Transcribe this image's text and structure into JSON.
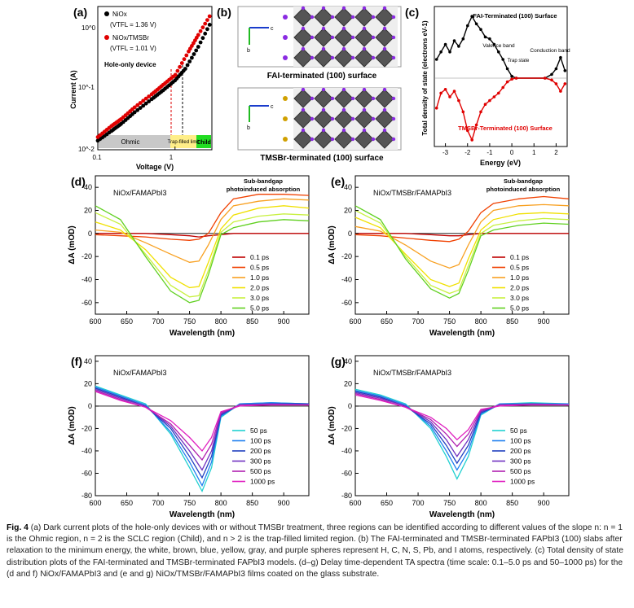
{
  "colors": {
    "ps": [
      "#c00000",
      "#f04000",
      "#f8a020",
      "#f0e000",
      "#c8f040",
      "#60d020"
    ],
    "long": [
      "#20d0d0",
      "#2080f0",
      "#2040c0",
      "#7030c0",
      "#b020b0",
      "#e020c0"
    ],
    "black": "#000000",
    "red": "#e00000",
    "slab_bg": "#eeeeee"
  },
  "panel_a": {
    "letter": "(a)",
    "legend": [
      "NiOx",
      "(VTFL = 1.36 V)",
      "NiOx/TMSBr",
      "(VTFL = 1.01 V)"
    ],
    "note": "Hole-only device",
    "region_labels": [
      "Ohmic",
      "Trap-filled limit",
      "Child"
    ],
    "xlabel": "Voltage (V)",
    "ylabel": "Current (A)",
    "xticks": [
      "0.1",
      "1"
    ],
    "yticks": [
      "10^0",
      "10^-1",
      "10^-2"
    ]
  },
  "panel_b": {
    "letter": "(b)",
    "top_label": "FAI-terminated (100) surface",
    "bottom_label": "TMSBr-terminated (100) surface",
    "axis_c": "c",
    "axis_b": "b"
  },
  "panel_c": {
    "letter": "(c)",
    "fai_title": "FAI-Terminated (100) Surface",
    "tmsbr_title": "TMSBr-Terminated (100) Surface",
    "valence": "Valence band",
    "trap": "Trap state",
    "conduction": "Conduction band",
    "xlabel": "Energy (eV)",
    "ylabel": "Total density of state (electrons eV-1)",
    "xticks": [
      "-3",
      "-2",
      "-1",
      "0",
      "1",
      "2"
    ]
  },
  "panels_ta": [
    {
      "letter": "(d)",
      "sample": "NiOx/FAMAPbI3",
      "annotation": "Sub-bandgap photoinduced absorption",
      "legend": [
        "0.1 ps",
        "0.5 ps",
        "1.0 ps",
        "2.0 ps",
        "3.0 ps",
        "5.0 ps"
      ]
    },
    {
      "letter": "(e)",
      "sample": "NiOx/TMSBr/FAMAPbI3",
      "annotation": "Sub-bandgap photoinduced absorption",
      "legend": [
        "0.1 ps",
        "0.5 ps",
        "1.0 ps",
        "2.0 ps",
        "3.0 ps",
        "5.0 ps"
      ]
    },
    {
      "letter": "(f)",
      "sample": "NiOx/FAMAPbI3",
      "annotation": "",
      "legend": [
        "50 ps",
        "100 ps",
        "200 ps",
        "300 ps",
        "500 ps",
        "1000 ps"
      ]
    },
    {
      "letter": "(g)",
      "sample": "NiOx/TMSBr/FAMAPbI3",
      "annotation": "",
      "legend": [
        "50 ps",
        "100 ps",
        "200 ps",
        "300 ps",
        "500 ps",
        "1000 ps"
      ]
    }
  ],
  "ta_axes": {
    "xlabel": "Wavelength (nm)",
    "ylabel": "ΔA (mOD)",
    "xticks": [
      "600",
      "650",
      "700",
      "750",
      "800",
      "850",
      "900"
    ],
    "yticks_de": [
      "40",
      "20",
      "0",
      "-20",
      "-40",
      "-60"
    ],
    "yticks_fg": [
      "40",
      "20",
      "0",
      "-20",
      "-40",
      "-60",
      "-80"
    ]
  },
  "chart_data": [
    {
      "type": "scatter",
      "panel": "a",
      "xlabel": "Voltage (V)",
      "ylabel": "Current (A)",
      "scale": "log-log",
      "xlim": [
        0.1,
        3
      ],
      "ylim": [
        0.01,
        2
      ],
      "series": [
        {
          "name": "NiOx (VTFL = 1.36 V)",
          "x": [
            0.1,
            0.15,
            0.2,
            0.3,
            0.5,
            0.7,
            1.0,
            1.36,
            2.0,
            3.0
          ],
          "y": [
            0.014,
            0.02,
            0.026,
            0.04,
            0.065,
            0.09,
            0.13,
            0.2,
            0.45,
            1.2
          ]
        },
        {
          "name": "NiOx/TMSBr (VTFL = 1.01 V)",
          "x": [
            0.1,
            0.15,
            0.2,
            0.3,
            0.5,
            0.7,
            1.01,
            1.5,
            2.0,
            3.0
          ],
          "y": [
            0.016,
            0.024,
            0.031,
            0.048,
            0.078,
            0.11,
            0.16,
            0.38,
            0.7,
            1.6
          ]
        }
      ]
    },
    {
      "type": "line",
      "panel": "c",
      "xlabel": "Energy (eV)",
      "xlim": [
        -3.5,
        2.5
      ],
      "series": [
        {
          "name": "FAI-Terminated (100) Surface",
          "x": [
            -3.4,
            -3.2,
            -3.0,
            -2.8,
            -2.6,
            -2.4,
            -2.2,
            -2.0,
            -1.8,
            -1.6,
            -1.4,
            -1.2,
            -1.0,
            -0.8,
            -0.6,
            -0.4,
            -0.2,
            0.0,
            0.2,
            1.5,
            1.8,
            2.0,
            2.2,
            2.4
          ],
          "y": [
            10,
            14,
            18,
            14,
            20,
            17,
            21,
            28,
            33,
            29,
            26,
            22,
            21,
            18,
            14,
            10,
            5,
            1,
            0,
            0,
            2,
            5,
            11,
            4
          ]
        },
        {
          "name": "TMSBr-Terminated (100) Surface",
          "x": [
            -3.4,
            -3.2,
            -3.0,
            -2.8,
            -2.6,
            -2.4,
            -2.2,
            -2.0,
            -1.8,
            -1.6,
            -1.4,
            -1.2,
            -1.0,
            -0.8,
            -0.6,
            -0.4,
            -0.2,
            0.0,
            0.2,
            1.5,
            1.8,
            2.0,
            2.2,
            2.4
          ],
          "y": [
            -16,
            -8,
            -6,
            -10,
            -7,
            -12,
            -18,
            -28,
            -33,
            -25,
            -18,
            -14,
            -12,
            -10,
            -8,
            -5,
            -2,
            -0.5,
            0,
            0,
            -1,
            -3,
            -7,
            -3
          ]
        }
      ]
    },
    {
      "type": "line",
      "panel": "d",
      "title": "NiOx/FAMAPbI3",
      "xlabel": "Wavelength (nm)",
      "ylabel": "ΔA (mOD)",
      "xlim": [
        600,
        940
      ],
      "ylim": [
        -70,
        50
      ],
      "x": [
        600,
        640,
        680,
        720,
        750,
        765,
        780,
        800,
        820,
        860,
        900,
        940
      ],
      "series": [
        {
          "name": "0.1 ps",
          "values": [
            0,
            0,
            0,
            -1,
            -2,
            -3,
            -2,
            -1,
            0,
            0,
            0,
            0
          ]
        },
        {
          "name": "0.5 ps",
          "values": [
            -1,
            -2,
            -3,
            -5,
            -6,
            -5,
            0,
            18,
            30,
            34,
            34,
            33
          ]
        },
        {
          "name": "1.0 ps",
          "values": [
            3,
            1,
            -8,
            -18,
            -25,
            -24,
            -10,
            12,
            24,
            28,
            30,
            29
          ]
        },
        {
          "name": "2.0 ps",
          "values": [
            10,
            3,
            -14,
            -38,
            -47,
            -46,
            -25,
            4,
            16,
            22,
            24,
            22
          ]
        },
        {
          "name": "3.0 ps",
          "values": [
            18,
            8,
            -18,
            -45,
            -55,
            -54,
            -32,
            1,
            10,
            15,
            17,
            16
          ]
        },
        {
          "name": "5.0 ps",
          "values": [
            24,
            12,
            -20,
            -50,
            -60,
            -58,
            -36,
            -1,
            5,
            10,
            12,
            11
          ]
        }
      ]
    },
    {
      "type": "line",
      "panel": "e",
      "title": "NiOx/TMSBr/FAMAPbI3",
      "xlabel": "Wavelength (nm)",
      "ylabel": "ΔA (mOD)",
      "xlim": [
        600,
        940
      ],
      "ylim": [
        -70,
        50
      ],
      "x": [
        600,
        640,
        680,
        720,
        750,
        765,
        780,
        800,
        820,
        860,
        900,
        940
      ],
      "series": [
        {
          "name": "0.1 ps",
          "values": [
            0,
            0,
            0,
            -1,
            -2,
            -2,
            -1,
            0,
            0,
            0,
            0,
            0
          ]
        },
        {
          "name": "0.5 ps",
          "values": [
            -1,
            -2,
            -4,
            -6,
            -7,
            -5,
            2,
            18,
            26,
            30,
            32,
            30
          ]
        },
        {
          "name": "1.0 ps",
          "values": [
            6,
            2,
            -10,
            -24,
            -30,
            -27,
            -10,
            10,
            20,
            24,
            25,
            24
          ]
        },
        {
          "name": "2.0 ps",
          "values": [
            14,
            5,
            -18,
            -40,
            -46,
            -43,
            -22,
            3,
            12,
            17,
            18,
            17
          ]
        },
        {
          "name": "3.0 ps",
          "values": [
            20,
            9,
            -20,
            -45,
            -52,
            -49,
            -28,
            0,
            7,
            11,
            13,
            12
          ]
        },
        {
          "name": "5.0 ps",
          "values": [
            24,
            12,
            -22,
            -48,
            -56,
            -52,
            -32,
            -2,
            3,
            7,
            9,
            8
          ]
        }
      ]
    },
    {
      "type": "line",
      "panel": "f",
      "title": "NiOx/FAMAPbI3",
      "xlabel": "Wavelength (nm)",
      "ylabel": "ΔA (mOD)",
      "xlim": [
        600,
        940
      ],
      "ylim": [
        -80,
        45
      ],
      "x": [
        600,
        640,
        680,
        720,
        750,
        770,
        785,
        800,
        830,
        880,
        940
      ],
      "series": [
        {
          "name": "50 ps",
          "values": [
            18,
            10,
            2,
            -25,
            -55,
            -76,
            -55,
            -10,
            2,
            3,
            2
          ]
        },
        {
          "name": "100 ps",
          "values": [
            17,
            9,
            1,
            -23,
            -50,
            -71,
            -50,
            -9,
            2,
            3,
            2
          ]
        },
        {
          "name": "200 ps",
          "values": [
            16,
            8,
            0,
            -20,
            -45,
            -64,
            -45,
            -8,
            1,
            2,
            2
          ]
        },
        {
          "name": "300 ps",
          "values": [
            15,
            7,
            0,
            -18,
            -40,
            -57,
            -40,
            -7,
            1,
            2,
            1
          ]
        },
        {
          "name": "500 ps",
          "values": [
            14,
            6,
            -1,
            -16,
            -35,
            -48,
            -34,
            -6,
            1,
            1,
            1
          ]
        },
        {
          "name": "1000 ps",
          "values": [
            13,
            5,
            -1,
            -13,
            -28,
            -40,
            -28,
            -5,
            0,
            1,
            1
          ]
        }
      ]
    },
    {
      "type": "line",
      "panel": "g",
      "title": "NiOx/TMSBr/FAMAPbI3",
      "xlabel": "Wavelength (nm)",
      "ylabel": "ΔA (mOD)",
      "xlim": [
        600,
        940
      ],
      "ylim": [
        -80,
        45
      ],
      "x": [
        600,
        640,
        680,
        720,
        745,
        762,
        780,
        800,
        830,
        880,
        940
      ],
      "series": [
        {
          "name": "50 ps",
          "values": [
            15,
            10,
            2,
            -20,
            -45,
            -65,
            -45,
            -8,
            2,
            3,
            2
          ]
        },
        {
          "name": "100 ps",
          "values": [
            14,
            9,
            1,
            -18,
            -40,
            -57,
            -40,
            -7,
            2,
            2,
            2
          ]
        },
        {
          "name": "200 ps",
          "values": [
            13,
            8,
            0,
            -16,
            -35,
            -51,
            -35,
            -6,
            1,
            2,
            1
          ]
        },
        {
          "name": "300 ps",
          "values": [
            12,
            7,
            0,
            -14,
            -30,
            -45,
            -30,
            -5,
            1,
            2,
            1
          ]
        },
        {
          "name": "500 ps",
          "values": [
            11,
            6,
            -1,
            -12,
            -25,
            -36,
            -25,
            -4,
            1,
            1,
            1
          ]
        },
        {
          "name": "1000 ps",
          "values": [
            10,
            5,
            -1,
            -10,
            -20,
            -30,
            -21,
            -3,
            0,
            1,
            1
          ]
        }
      ]
    }
  ],
  "caption": {
    "lead": "Fig. 4",
    "text": "(a) Dark current plots of the hole-only devices with or without TMSBr treatment, three regions can be identified according to different values of the slope n: n = 1 is the Ohmic region, n = 2 is the SCLC region (Child), and n > 2 is the trap-filled limited region. (b) The FAI-terminated and TMSBr-terminated FAPbI3 (100) slabs after relaxation to the minimum energy, the white, brown, blue, yellow, gray, and purple spheres represent H, C, N, S, Pb, and I atoms, respectively. (c) Total density of state distribution plots of the FAI-terminated and TMSBr-terminated FAPbI3 models. (d–g) Delay time-dependent TA spectra (time scale: 0.1–5.0 ps and 50–1000 ps) for the (d and f) NiOx/FAMAPbI3 and (e and g) NiOx/TMSBr/FAMAPbI3 films coated on the glass substrate."
  }
}
